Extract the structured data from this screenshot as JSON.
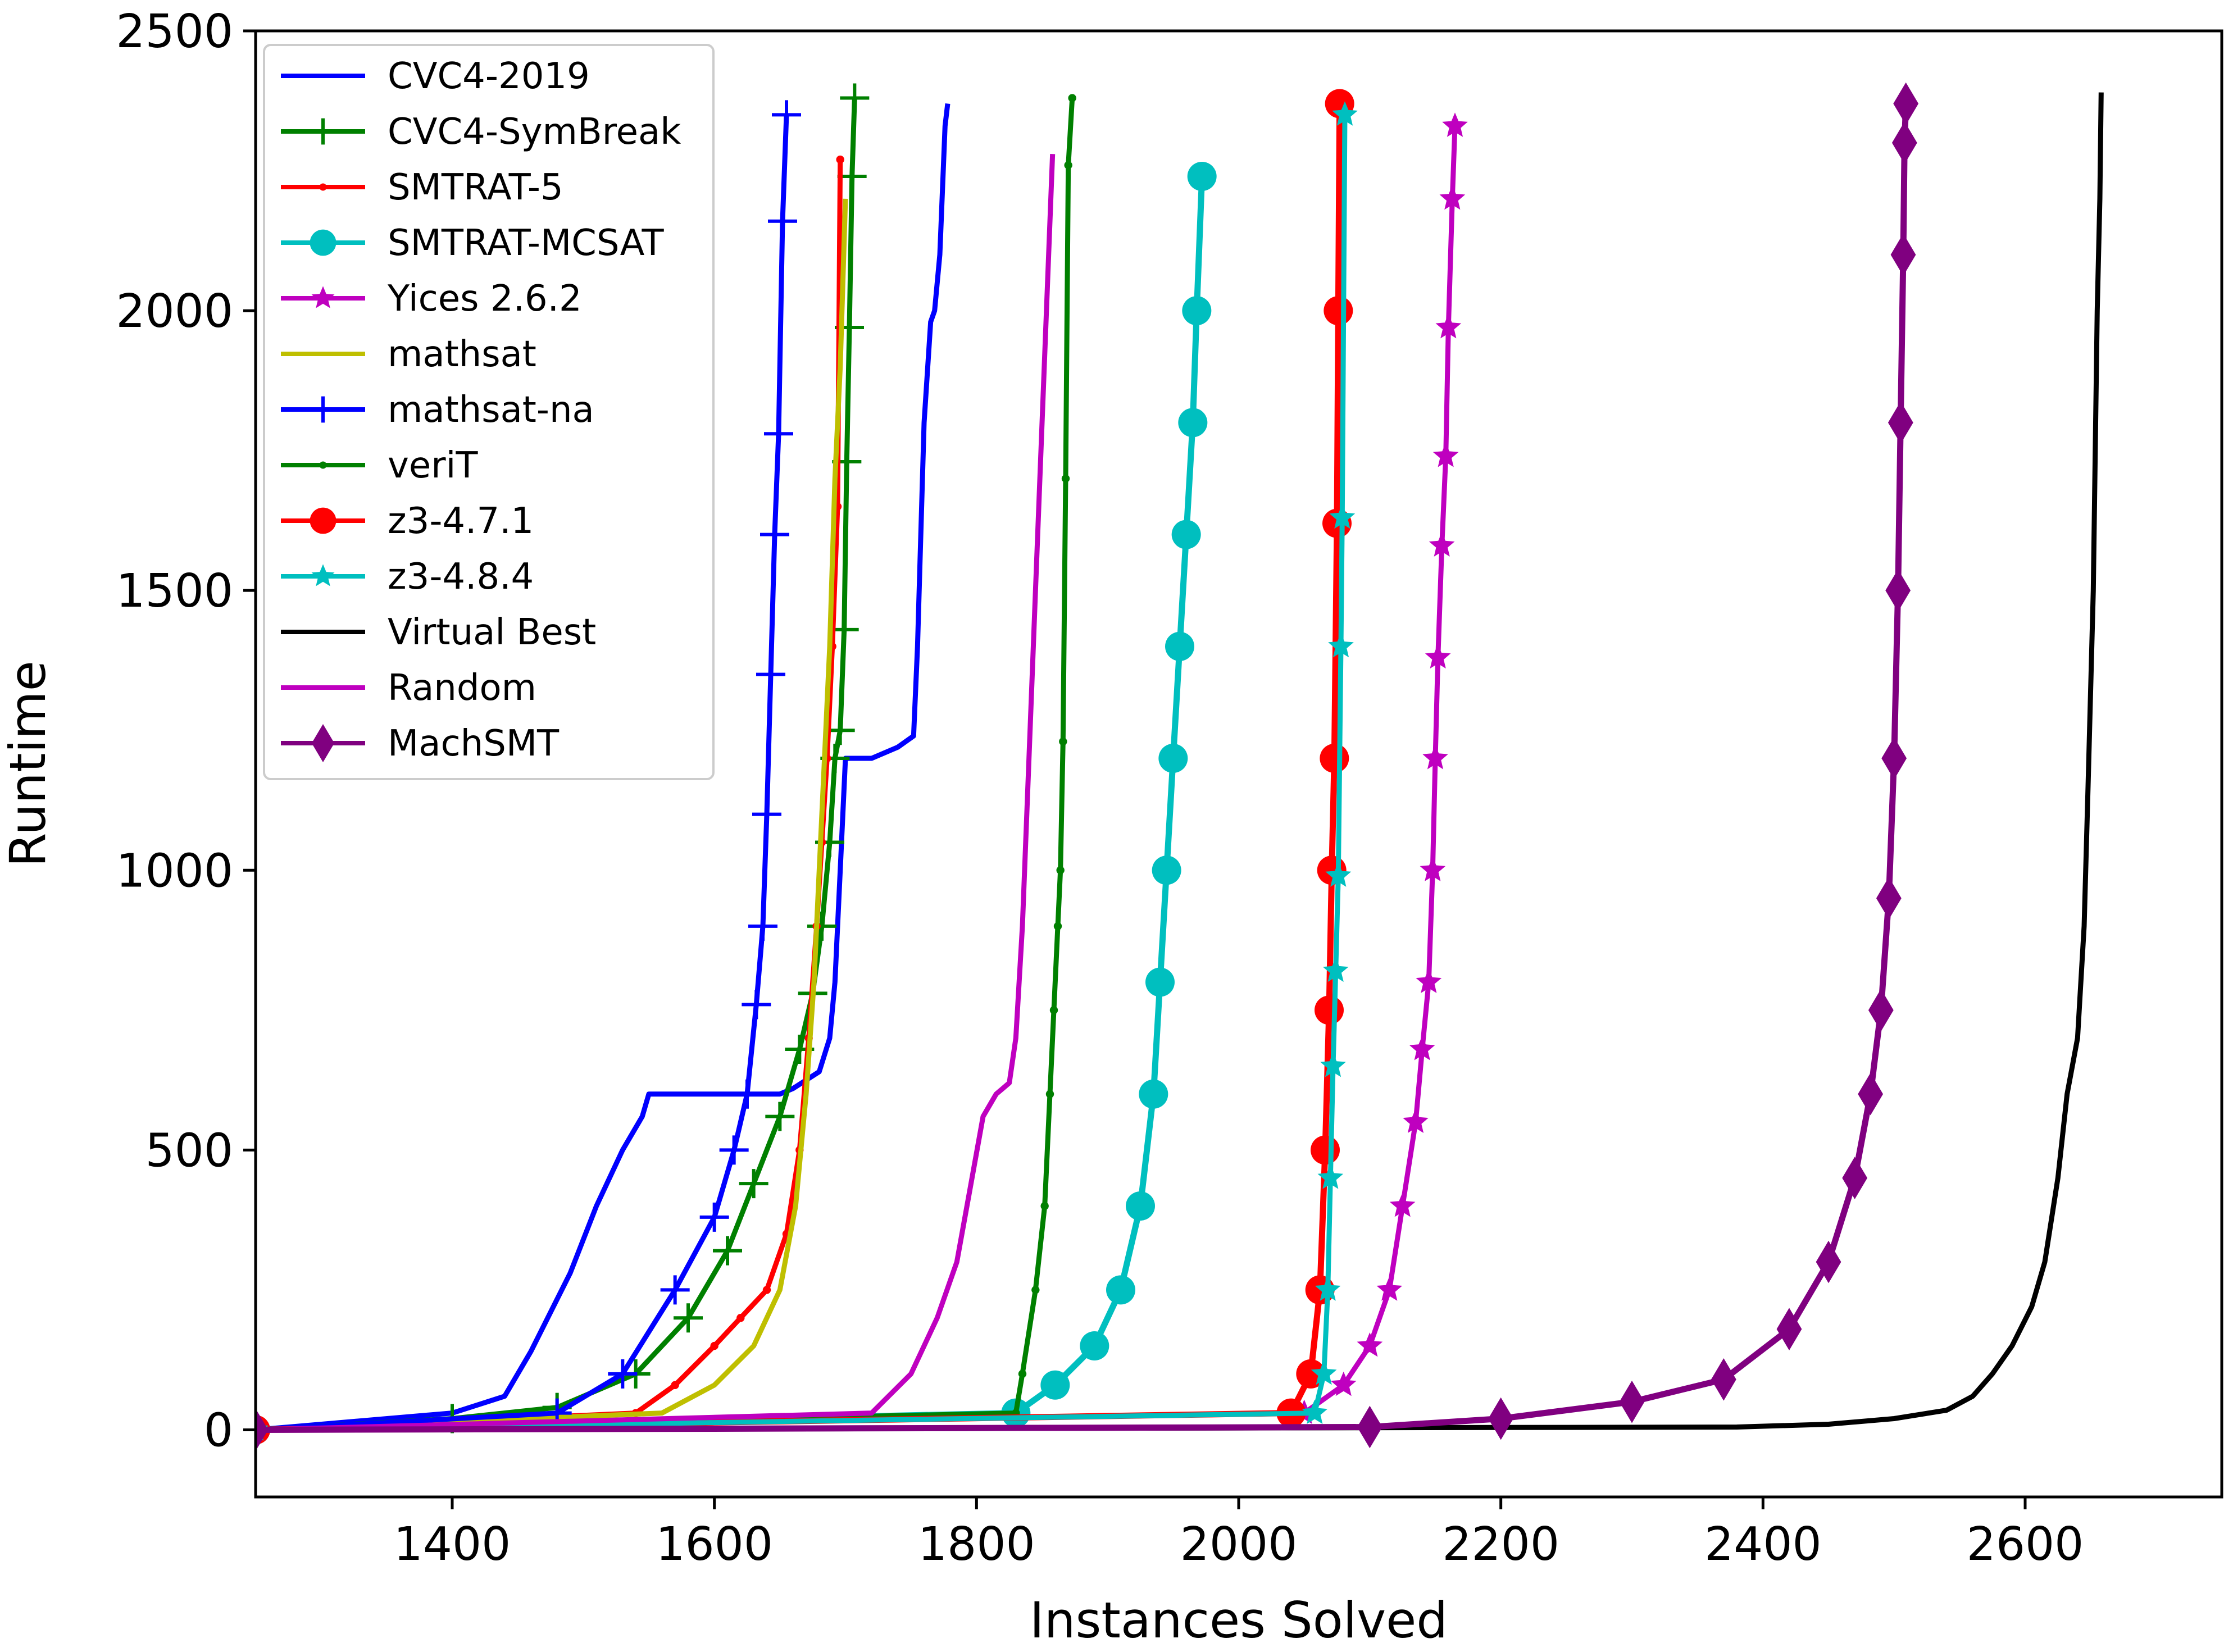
{
  "chart_data": {
    "type": "line",
    "title": "",
    "xlabel": "Instances Solved",
    "ylabel": "Runtime",
    "xlim": [
      1250,
      2750
    ],
    "ylim": [
      -120,
      2500
    ],
    "xticks": [
      1400,
      1600,
      1800,
      2000,
      2200,
      2400,
      2600
    ],
    "yticks": [
      0,
      500,
      1000,
      1500,
      2000,
      2500
    ],
    "grid": false,
    "legend_position": "top-left",
    "series": [
      {
        "name": "CVC4-2019",
        "color": "#0000ff",
        "marker": "none",
        "x": [
          1250,
          1400,
          1440,
          1460,
          1490,
          1510,
          1530,
          1545,
          1550,
          1555,
          1570,
          1600,
          1650,
          1660,
          1680,
          1688,
          1692,
          1696,
          1700,
          1702,
          1705,
          1712,
          1720,
          1740,
          1752,
          1755,
          1760,
          1765,
          1768,
          1772,
          1776,
          1778
        ],
        "y": [
          0,
          30,
          60,
          140,
          280,
          400,
          500,
          560,
          600,
          600,
          600,
          600,
          600,
          610,
          640,
          700,
          800,
          1000,
          1200,
          1200,
          1200,
          1200,
          1200,
          1220,
          1240,
          1400,
          1800,
          1980,
          2000,
          2100,
          2330,
          2370
        ]
      },
      {
        "name": "CVC4-SymBreak",
        "color": "#008000",
        "marker": "plus",
        "x": [
          1250,
          1400,
          1480,
          1540,
          1580,
          1610,
          1630,
          1650,
          1665,
          1675,
          1682,
          1688,
          1692,
          1696,
          1699,
          1701,
          1703,
          1705,
          1707
        ],
        "y": [
          0,
          20,
          40,
          100,
          200,
          320,
          440,
          560,
          680,
          780,
          900,
          1050,
          1200,
          1250,
          1430,
          1730,
          1970,
          2240,
          2380
        ]
      },
      {
        "name": "SMTRAT-5",
        "color": "#ff0000",
        "marker": "dot",
        "x": [
          1250,
          1540,
          1570,
          1600,
          1620,
          1640,
          1655,
          1665,
          1672,
          1678,
          1682,
          1686,
          1690,
          1694,
          1696
        ],
        "y": [
          0,
          30,
          80,
          150,
          200,
          250,
          350,
          500,
          700,
          900,
          1050,
          1200,
          1400,
          1650,
          2270
        ]
      },
      {
        "name": "SMTRAT-MCSAT",
        "color": "#00bfbf",
        "marker": "circle",
        "x": [
          1250,
          1830,
          1860,
          1890,
          1910,
          1925,
          1935,
          1940,
          1945,
          1950,
          1955,
          1960,
          1965,
          1968,
          1972
        ],
        "y": [
          0,
          30,
          80,
          150,
          250,
          400,
          600,
          800,
          1000,
          1200,
          1400,
          1600,
          1800,
          2000,
          2240
        ]
      },
      {
        "name": "Yices 2.6.2",
        "color": "#bf00bf",
        "marker": "star",
        "x": [
          1250,
          2050,
          2080,
          2100,
          2115,
          2125,
          2135,
          2140,
          2145,
          2148,
          2150,
          2152,
          2155,
          2158,
          2160,
          2163,
          2165
        ],
        "y": [
          0,
          30,
          80,
          150,
          250,
          400,
          550,
          680,
          800,
          1000,
          1200,
          1380,
          1580,
          1740,
          1970,
          2200,
          2330
        ]
      },
      {
        "name": "mathsat",
        "color": "#bfbf00",
        "marker": "none",
        "x": [
          1250,
          1560,
          1600,
          1630,
          1650,
          1662,
          1670,
          1676,
          1680,
          1684,
          1688,
          1692,
          1696,
          1700
        ],
        "y": [
          0,
          30,
          80,
          150,
          250,
          400,
          600,
          800,
          1000,
          1200,
          1400,
          1700,
          1900,
          2200
        ]
      },
      {
        "name": "mathsat-na",
        "color": "#0000ff",
        "marker": "plus",
        "x": [
          1250,
          1480,
          1530,
          1570,
          1600,
          1615,
          1625,
          1632,
          1637,
          1640,
          1643,
          1646,
          1649,
          1652,
          1655
        ],
        "y": [
          0,
          30,
          100,
          250,
          380,
          500,
          600,
          760,
          900,
          1100,
          1350,
          1600,
          1780,
          2160,
          2350
        ]
      },
      {
        "name": "veriT",
        "color": "#008000",
        "marker": "dot",
        "x": [
          1250,
          1830,
          1835,
          1845,
          1852,
          1856,
          1859,
          1862,
          1864,
          1866,
          1868,
          1870,
          1873
        ],
        "y": [
          0,
          30,
          100,
          250,
          400,
          600,
          750,
          900,
          1000,
          1230,
          1700,
          2260,
          2380
        ]
      },
      {
        "name": "z3-4.7.1",
        "color": "#ff0000",
        "marker": "circle",
        "x": [
          1250,
          2040,
          2055,
          2062,
          2066,
          2069,
          2071,
          2073,
          2075,
          2076,
          2077
        ],
        "y": [
          0,
          30,
          100,
          250,
          500,
          750,
          1000,
          1200,
          1620,
          2000,
          2370
        ]
      },
      {
        "name": "z3-4.8.4",
        "color": "#00bfbf",
        "marker": "star",
        "x": [
          1250,
          2058,
          2065,
          2068,
          2070,
          2072,
          2074,
          2076,
          2078,
          2079,
          2081
        ],
        "y": [
          0,
          30,
          100,
          250,
          450,
          650,
          820,
          990,
          1400,
          1630,
          2350
        ]
      },
      {
        "name": "Virtual Best",
        "color": "#000000",
        "marker": "none",
        "x": [
          1250,
          2380,
          2450,
          2500,
          2540,
          2560,
          2575,
          2590,
          2605,
          2615,
          2625,
          2632,
          2640,
          2645,
          2648,
          2652,
          2655,
          2657,
          2658
        ],
        "y": [
          0,
          5,
          10,
          20,
          35,
          60,
          100,
          150,
          220,
          300,
          450,
          600,
          700,
          900,
          1150,
          1500,
          2000,
          2200,
          2390
        ]
      },
      {
        "name": "Random",
        "color": "#bf00bf",
        "marker": "none",
        "x": [
          1250,
          1720,
          1750,
          1770,
          1785,
          1795,
          1805,
          1815,
          1820,
          1825,
          1830,
          1835,
          1840,
          1845,
          1850,
          1855,
          1858
        ],
        "y": [
          0,
          30,
          100,
          200,
          300,
          430,
          560,
          600,
          610,
          620,
          700,
          900,
          1200,
          1500,
          1800,
          2100,
          2280
        ]
      },
      {
        "name": "MachSMT",
        "color": "#800080",
        "marker": "diamond",
        "x": [
          1250,
          2100,
          2200,
          2300,
          2370,
          2420,
          2450,
          2470,
          2482,
          2490,
          2496,
          2500,
          2503,
          2505,
          2507,
          2508,
          2509
        ],
        "y": [
          0,
          5,
          20,
          50,
          90,
          180,
          300,
          450,
          600,
          750,
          950,
          1200,
          1500,
          1800,
          2100,
          2300,
          2370
        ]
      }
    ]
  }
}
